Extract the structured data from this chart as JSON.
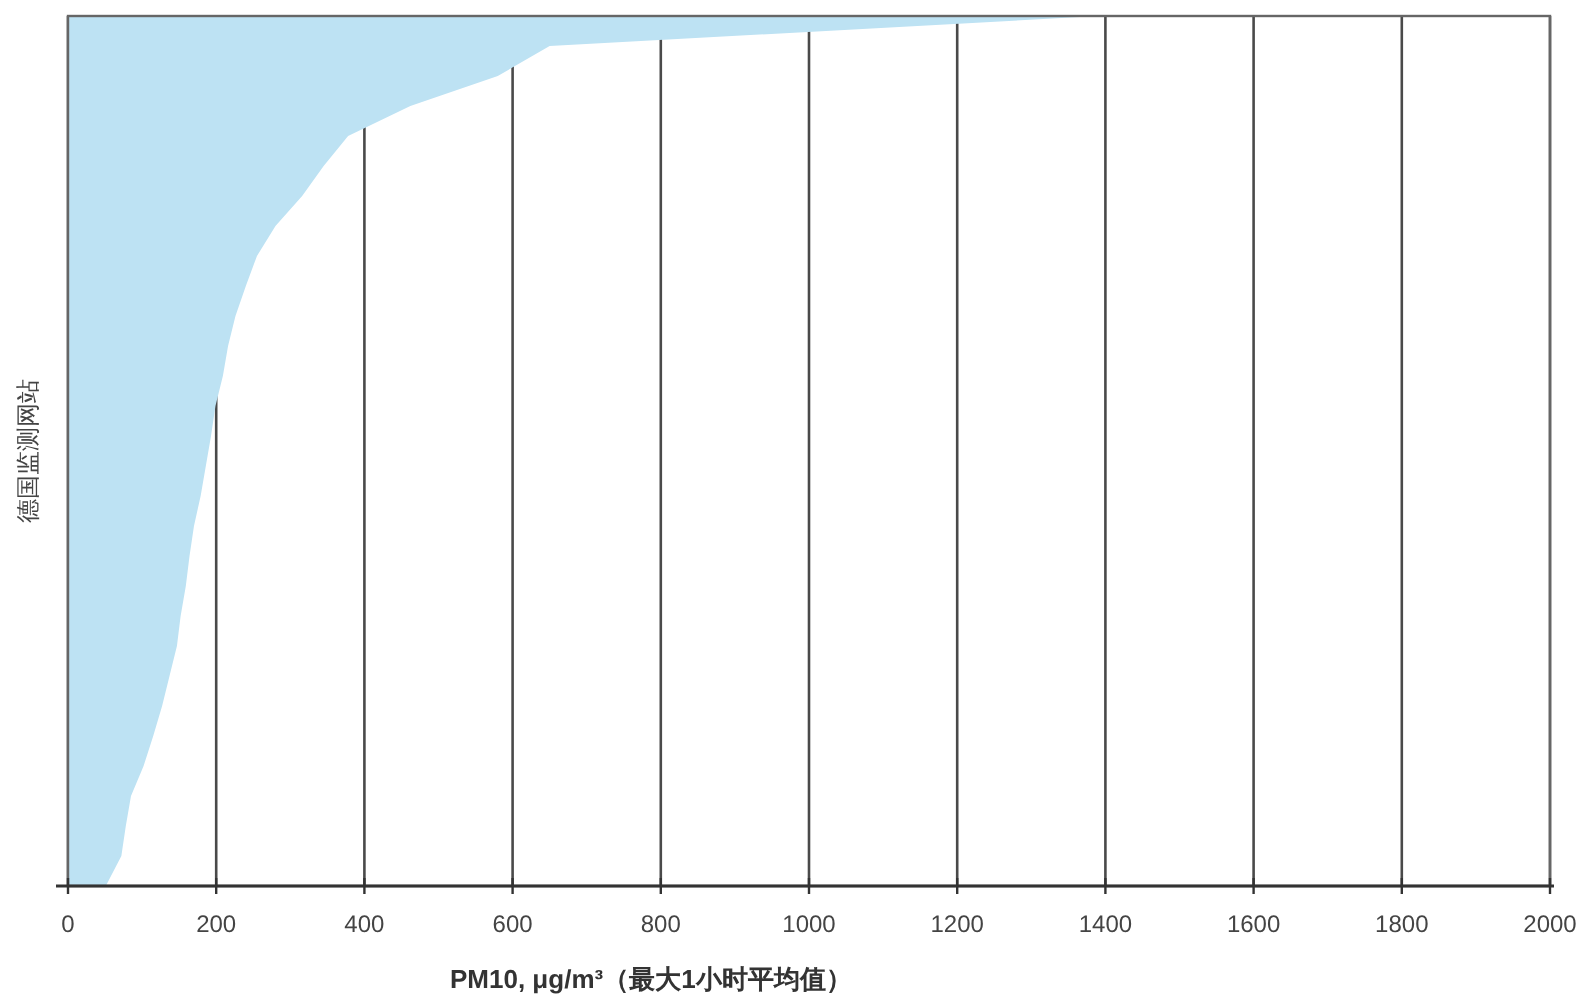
{
  "chart_data": {
    "type": "area",
    "orientation": "horizontal",
    "xlabel": "PM10, μg/m³（最大1小时平均值）",
    "ylabel": "德国监测网站",
    "color": "#bde2f3",
    "grid": "x",
    "xlim": [
      0,
      2000
    ],
    "xticks": [
      0,
      200,
      400,
      600,
      800,
      1000,
      1200,
      1400,
      1600,
      1800,
      2000
    ],
    "categories": [
      null,
      null,
      null,
      null,
      null,
      null,
      null,
      null,
      null,
      null,
      null,
      null,
      null,
      null,
      null,
      null,
      null,
      null,
      null,
      null,
      null,
      null,
      null,
      null,
      null,
      null,
      null,
      null,
      null,
      null
    ],
    "values": [
      1390,
      650,
      580,
      462,
      378,
      345,
      316,
      280,
      255,
      240,
      226,
      216,
      209,
      199,
      193,
      186,
      179,
      170,
      164,
      159,
      152,
      147,
      137,
      127,
      115,
      102,
      85,
      78,
      72,
      51
    ]
  }
}
